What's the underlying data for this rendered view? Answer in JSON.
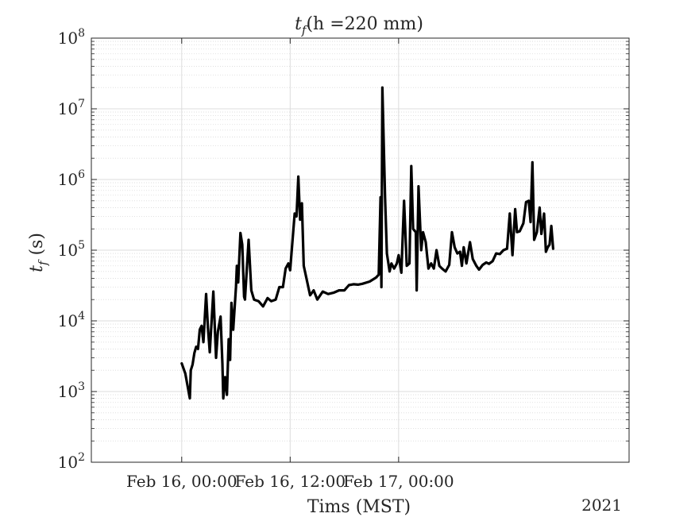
{
  "chart_data": {
    "type": "line",
    "title": {
      "var": "t",
      "sub": "f",
      "rest": "(h =220 mm)"
    },
    "xlabel": "Tims (MST)",
    "ylabel": {
      "var": "t",
      "sub": "f",
      "rest": " (s)"
    },
    "year_label": "2021",
    "yscale": "log",
    "grid": true,
    "minor_grid": true,
    "xlim_hours": [
      -10,
      49.5
    ],
    "ylim": [
      100,
      100000000
    ],
    "x_ticks": [
      {
        "at_hours": 0,
        "label": "Feb 16, 00:00"
      },
      {
        "at_hours": 12,
        "label": "Feb 16, 12:00"
      },
      {
        "at_hours": 24,
        "label": "Feb 17, 00:00"
      }
    ],
    "y_ticks": [
      {
        "exp": "2",
        "value": 100
      },
      {
        "exp": "3",
        "value": 1000
      },
      {
        "exp": "4",
        "value": 10000
      },
      {
        "exp": "5",
        "value": 100000
      },
      {
        "exp": "6",
        "value": 1000000
      },
      {
        "exp": "7",
        "value": 10000000
      },
      {
        "exp": "8",
        "value": 100000000
      }
    ],
    "series": [
      {
        "color": "#000000",
        "points": [
          [
            0.0,
            2500
          ],
          [
            0.4,
            1800
          ],
          [
            0.6,
            1300
          ],
          [
            0.9,
            800
          ],
          [
            1.0,
            2000
          ],
          [
            1.2,
            2400
          ],
          [
            1.4,
            3500
          ],
          [
            1.6,
            4300
          ],
          [
            1.8,
            4000
          ],
          [
            2.0,
            7500
          ],
          [
            2.2,
            8500
          ],
          [
            2.4,
            5000
          ],
          [
            2.7,
            24000
          ],
          [
            2.9,
            8000
          ],
          [
            3.1,
            3600
          ],
          [
            3.5,
            26000
          ],
          [
            3.8,
            3000
          ],
          [
            4.0,
            7000
          ],
          [
            4.3,
            11500
          ],
          [
            4.5,
            2500
          ],
          [
            4.6,
            800
          ],
          [
            4.8,
            1600
          ],
          [
            5.0,
            900
          ],
          [
            5.2,
            5500
          ],
          [
            5.35,
            2800
          ],
          [
            5.5,
            18000
          ],
          [
            5.7,
            7500
          ],
          [
            6.0,
            30000
          ],
          [
            6.1,
            60000
          ],
          [
            6.25,
            35000
          ],
          [
            6.5,
            175000
          ],
          [
            6.7,
            120000
          ],
          [
            6.9,
            22000
          ],
          [
            7.0,
            20000
          ],
          [
            7.4,
            140000
          ],
          [
            7.7,
            27000
          ],
          [
            8.0,
            20000
          ],
          [
            8.5,
            19000
          ],
          [
            9.0,
            16000
          ],
          [
            9.5,
            21000
          ],
          [
            9.9,
            19000
          ],
          [
            10.4,
            20000
          ],
          [
            10.8,
            30000
          ],
          [
            11.2,
            30000
          ],
          [
            11.5,
            55000
          ],
          [
            11.8,
            65000
          ],
          [
            12.0,
            52000
          ],
          [
            12.5,
            330000
          ],
          [
            12.7,
            300000
          ],
          [
            12.9,
            1100000
          ],
          [
            13.1,
            270000
          ],
          [
            13.3,
            460000
          ],
          [
            13.5,
            60000
          ],
          [
            13.8,
            40000
          ],
          [
            14.2,
            23000
          ],
          [
            14.6,
            27000
          ],
          [
            15.0,
            20000
          ],
          [
            15.6,
            26000
          ],
          [
            16.2,
            24000
          ],
          [
            16.8,
            25000
          ],
          [
            17.4,
            27000
          ],
          [
            18.0,
            27000
          ],
          [
            18.5,
            32000
          ],
          [
            19.0,
            33000
          ],
          [
            19.5,
            32500
          ],
          [
            20.0,
            33500
          ],
          [
            20.8,
            36000
          ],
          [
            21.5,
            41000
          ],
          [
            21.8,
            45000
          ],
          [
            22.0,
            560000
          ],
          [
            22.1,
            30000
          ],
          [
            22.2,
            20000000
          ],
          [
            22.5,
            550000
          ],
          [
            22.7,
            90000
          ],
          [
            23.0,
            50000
          ],
          [
            23.2,
            65000
          ],
          [
            23.5,
            55000
          ],
          [
            23.8,
            65000
          ],
          [
            24.0,
            85000
          ],
          [
            24.3,
            48000
          ],
          [
            24.6,
            500000
          ],
          [
            24.9,
            60000
          ],
          [
            25.2,
            65000
          ],
          [
            25.4,
            1550000
          ],
          [
            25.6,
            200000
          ],
          [
            25.9,
            180000
          ],
          [
            26.0,
            27000
          ],
          [
            26.2,
            800000
          ],
          [
            26.5,
            100000
          ],
          [
            26.7,
            180000
          ],
          [
            27.0,
            130000
          ],
          [
            27.3,
            55000
          ],
          [
            27.6,
            65000
          ],
          [
            27.9,
            55000
          ],
          [
            28.2,
            100000
          ],
          [
            28.5,
            60000
          ],
          [
            28.8,
            55000
          ],
          [
            29.2,
            50000
          ],
          [
            29.6,
            62000
          ],
          [
            29.9,
            180000
          ],
          [
            30.2,
            110000
          ],
          [
            30.5,
            90000
          ],
          [
            30.8,
            95000
          ],
          [
            31.0,
            60000
          ],
          [
            31.2,
            110000
          ],
          [
            31.5,
            65000
          ],
          [
            31.9,
            130000
          ],
          [
            32.2,
            75000
          ],
          [
            32.6,
            60000
          ],
          [
            32.9,
            53000
          ],
          [
            33.3,
            62000
          ],
          [
            33.7,
            67000
          ],
          [
            34.0,
            64000
          ],
          [
            34.4,
            70000
          ],
          [
            34.8,
            90000
          ],
          [
            35.2,
            88000
          ],
          [
            35.6,
            100000
          ],
          [
            36.0,
            105000
          ],
          [
            36.3,
            330000
          ],
          [
            36.6,
            85000
          ],
          [
            36.9,
            380000
          ],
          [
            37.1,
            180000
          ],
          [
            37.4,
            185000
          ],
          [
            37.8,
            240000
          ],
          [
            38.1,
            480000
          ],
          [
            38.4,
            500000
          ],
          [
            38.6,
            250000
          ],
          [
            38.8,
            1750000
          ],
          [
            39.0,
            140000
          ],
          [
            39.3,
            180000
          ],
          [
            39.6,
            400000
          ],
          [
            39.8,
            170000
          ],
          [
            40.1,
            330000
          ],
          [
            40.3,
            95000
          ],
          [
            40.5,
            110000
          ],
          [
            40.7,
            120000
          ],
          [
            40.9,
            220000
          ],
          [
            41.1,
            105000
          ]
        ]
      }
    ]
  }
}
